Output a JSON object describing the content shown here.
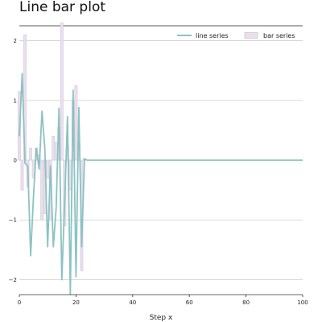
{
  "chart_data": {
    "type": "line",
    "title": "Line bar plot",
    "xlabel": "Step x",
    "ylabel": "",
    "xlim": [
      0,
      100
    ],
    "ylim": [
      -2.25,
      2.25
    ],
    "xticks": [
      0,
      20,
      40,
      60,
      80,
      100
    ],
    "yticks": [
      -2,
      -1,
      0,
      1,
      2
    ],
    "grid": "horizontal",
    "legend_position": "top-right",
    "colors": {
      "line": "#8cc2c2",
      "bar_fill": "#e9e0ec",
      "bar_edge": "#d9cbe0",
      "grid": "#d0d0d0"
    },
    "series": [
      {
        "name": "line series",
        "kind": "line",
        "x": [
          0,
          1,
          2,
          3,
          4,
          5,
          6,
          7,
          8,
          9,
          10,
          11,
          12,
          13,
          14,
          15,
          16,
          17,
          18,
          19,
          20,
          21,
          22,
          23,
          24,
          25,
          30,
          40,
          50,
          60,
          70,
          80,
          90,
          100
        ],
        "values": [
          0.4,
          1.45,
          -0.05,
          -0.1,
          -1.6,
          -0.6,
          0.2,
          -0.15,
          0.82,
          0.2,
          -1.45,
          -0.1,
          -1.45,
          -0.8,
          0.87,
          -2.0,
          -0.7,
          0.73,
          -2.25,
          1.17,
          -1.95,
          0.88,
          -1.45,
          0.02,
          0.0,
          0.0,
          0.0,
          0.0,
          0.0,
          0.0,
          0.0,
          0.0,
          0.0,
          0.0
        ]
      },
      {
        "name": "bar series",
        "kind": "bar",
        "x": [
          0,
          1,
          2,
          3,
          4,
          5,
          6,
          7,
          8,
          9,
          10,
          11,
          12,
          13,
          14,
          15,
          16,
          17,
          18,
          19,
          20,
          21,
          22,
          23
        ],
        "values": [
          1.15,
          -0.5,
          2.1,
          -0.45,
          0.2,
          -0.3,
          0.2,
          0.1,
          -1.0,
          -0.9,
          -0.3,
          -1.0,
          0.4,
          0.3,
          0.55,
          2.3,
          -1.1,
          0.25,
          -0.5,
          1.0,
          1.25,
          0.2,
          -1.85,
          0.03
        ]
      }
    ]
  }
}
